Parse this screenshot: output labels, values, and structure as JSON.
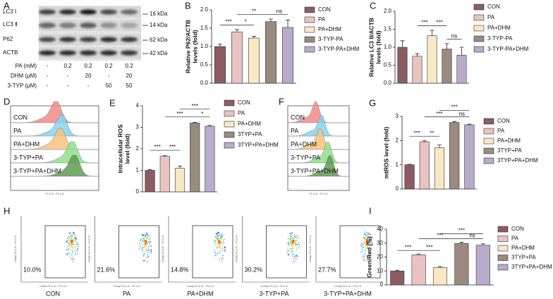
{
  "panel_letters": [
    "A",
    "B",
    "C",
    "D",
    "E",
    "F",
    "G",
    "H",
    "I"
  ],
  "blot": {
    "rows": [
      "LC3 Ⅰ",
      "LC3 Ⅱ",
      "P62",
      "ACTB"
    ],
    "sizes": [
      "16 kDa",
      "14 kDa",
      "62 kDa",
      "42 kDa"
    ],
    "treatments": [
      {
        "name": "PA (mM)",
        "cells": [
          "-",
          "0.2",
          "0.2",
          "0.2",
          "0.2"
        ]
      },
      {
        "name": "DHM (μM)",
        "cells": [
          "-",
          "-",
          "20",
          "-",
          "20"
        ]
      },
      {
        "name": "3-TYP (μM)",
        "cells": [
          "-",
          "-",
          "-",
          "50",
          "50"
        ]
      }
    ]
  },
  "flow_histograms": [
    {
      "labels": [
        "CON",
        "PA",
        "PA+DHM",
        "3-TYP+PA",
        "3-TYP+PA+DHM"
      ],
      "colors": [
        "#f28b8b",
        "#86d4ee",
        "#f6c27e",
        "#90e08c",
        "#5f9a52"
      ],
      "x_axis_label": "FL1-A :: FL1-A"
    },
    {
      "labels": [
        "CON",
        "PA",
        "PA+DHM",
        "3-TYP+PA",
        "3-TYP+PA+DHM"
      ],
      "colors": [
        "#f28b8b",
        "#86d4ee",
        "#f6c27e",
        "#90e08c",
        "#5f9a52"
      ],
      "x_axis_label": "FL1-A :: FL1-A"
    }
  ],
  "flow_scatter": {
    "x_axis_label": "Comp-FL1-A :: FL1-A",
    "y_axis_label": "Comp-FL2-A :: FL2-A",
    "plots": [
      {
        "label": "CON",
        "percent": "10.0%"
      },
      {
        "label": "PA",
        "percent": "21.6%"
      },
      {
        "label": "PA+DHM",
        "percent": "14.8%"
      },
      {
        "label": "3-TYP+PA",
        "percent": "30.2%"
      },
      {
        "label": "3-TYP+PA+DHM",
        "percent": "27.7%"
      }
    ]
  },
  "chart_data": [
    {
      "type": "bar",
      "ylabel": [
        "Relative P62/ACTB",
        "levels (fold)"
      ],
      "ylim": [
        0,
        2
      ],
      "yticks": [
        {
          "value": 0,
          "label": "0.0"
        },
        {
          "value": 0.5,
          "label": "0.5"
        },
        {
          "value": 1,
          "label": "1.0"
        },
        {
          "value": 1.5,
          "label": "1.5"
        },
        {
          "value": 2,
          "label": "2.0"
        }
      ],
      "series": [
        {
          "name": "CON",
          "color": "#8b5c60",
          "values": [
            1.0
          ],
          "errors": [
            0.07
          ]
        },
        {
          "name": "PA",
          "color": "#e8c3bf",
          "values": [
            1.4
          ],
          "errors": [
            0.06
          ]
        },
        {
          "name": "PA+DHM",
          "color": "#f8e8c4",
          "values": [
            1.23
          ],
          "errors": [
            0.05
          ]
        },
        {
          "name": "3-TYP-PA",
          "color": "#9a8a80",
          "values": [
            1.68
          ],
          "errors": [
            0.07
          ]
        },
        {
          "name": "3-TYP-PA+DHM",
          "color": "#b8abcb",
          "values": [
            1.52
          ],
          "errors": [
            0.2
          ]
        }
      ],
      "annotations": [
        {
          "label": "***",
          "bars": [
            0,
            1
          ]
        },
        {
          "label": "*",
          "bars": [
            1,
            2
          ]
        },
        {
          "label": "**",
          "bars": [
            1,
            3
          ]
        },
        {
          "label": "ns",
          "bars": [
            3,
            4
          ]
        }
      ]
    },
    {
      "type": "bar",
      "ylabel": [
        "Relative LC3 II/ACTB",
        "levels (fold)"
      ],
      "ylim": [
        0,
        2
      ],
      "yticks": [
        {
          "value": 0,
          "label": "0.0"
        },
        {
          "value": 0.5,
          "label": "0.5"
        },
        {
          "value": 1,
          "label": "1.0"
        },
        {
          "value": 1.5,
          "label": "1.5"
        },
        {
          "value": 2,
          "label": "2.0"
        }
      ],
      "series": [
        {
          "name": "CON",
          "color": "#8b5c60",
          "values": [
            1.0
          ],
          "errors": [
            0.18
          ]
        },
        {
          "name": "PA",
          "color": "#e8c3bf",
          "values": [
            0.75
          ],
          "errors": [
            0.07
          ]
        },
        {
          "name": "PA+DHM",
          "color": "#f8e8c4",
          "values": [
            1.32
          ],
          "errors": [
            0.15
          ]
        },
        {
          "name": "3-TYP-PA",
          "color": "#9a8a80",
          "values": [
            0.95
          ],
          "errors": [
            0.15
          ]
        },
        {
          "name": "3-TYP-PA+DHM",
          "color": "#b8abcb",
          "values": [
            0.78
          ],
          "errors": [
            0.22
          ]
        }
      ],
      "annotations": [
        {
          "label": "***",
          "bars": [
            1,
            2
          ]
        },
        {
          "label": "***",
          "bars": [
            2,
            3
          ]
        },
        {
          "label": "ns",
          "bars": [
            3,
            4
          ]
        }
      ]
    },
    {
      "type": "bar",
      "ylabel": [
        "Intracellular ROS",
        "level (fold)"
      ],
      "ylim": [
        0,
        4
      ],
      "yticks": [
        0,
        1,
        2,
        3,
        4
      ],
      "series": [
        {
          "name": "CON",
          "color": "#8b5c60",
          "values": [
            1.0
          ],
          "errors": [
            0.04
          ]
        },
        {
          "name": "PA",
          "color": "#e8c3bf",
          "values": [
            1.65
          ],
          "errors": [
            0.03
          ]
        },
        {
          "name": "PA+DHM",
          "color": "#f8e8c4",
          "values": [
            1.1
          ],
          "errors": [
            0.1
          ]
        },
        {
          "name": "3TYP+PA",
          "color": "#9a8a80",
          "values": [
            3.2
          ],
          "errors": [
            0.03
          ]
        },
        {
          "name": "3TYP+PA+DHM",
          "color": "#b8abcb",
          "values": [
            3.05
          ],
          "errors": [
            0.04
          ]
        }
      ],
      "annotations": [
        {
          "label": "***",
          "bars": [
            0,
            1
          ]
        },
        {
          "label": "***",
          "bars": [
            1,
            2
          ]
        },
        {
          "label": "***",
          "bars": [
            1,
            3
          ]
        },
        {
          "label": "*",
          "bars": [
            3,
            4
          ]
        },
        {
          "label": "***",
          "bars": [
            2,
            4
          ]
        }
      ]
    },
    {
      "type": "bar",
      "ylabel": [
        "mtROS level (fold)"
      ],
      "ylim": [
        0,
        3
      ],
      "yticks": [
        0,
        1,
        2,
        3
      ],
      "series": [
        {
          "name": "CON",
          "color": "#8b5c60",
          "values": [
            1.0
          ],
          "errors": [
            0.02
          ]
        },
        {
          "name": "PA",
          "color": "#e8c3bf",
          "values": [
            1.95
          ],
          "errors": [
            0.04
          ]
        },
        {
          "name": "PA+DHM",
          "color": "#f8e8c4",
          "values": [
            1.7
          ],
          "errors": [
            0.12
          ]
        },
        {
          "name": "3TYP+PA",
          "color": "#9a8a80",
          "values": [
            2.75
          ],
          "errors": [
            0.04
          ]
        },
        {
          "name": "3TYP+PA+DHM",
          "color": "#b8abcb",
          "values": [
            2.65
          ],
          "errors": [
            0.03
          ]
        }
      ],
      "annotations": [
        {
          "label": "***",
          "bars": [
            0,
            1
          ]
        },
        {
          "label": "**",
          "bars": [
            1,
            2
          ]
        },
        {
          "label": "***",
          "bars": [
            1,
            3
          ]
        },
        {
          "label": "ns",
          "bars": [
            3,
            4
          ]
        },
        {
          "label": "***",
          "bars": [
            2,
            4
          ]
        }
      ]
    },
    {
      "type": "bar",
      "ylabel": [
        "Green/Red (%)"
      ],
      "ylim": [
        0,
        40
      ],
      "yticks": [
        0,
        10,
        20,
        30,
        40
      ],
      "series": [
        {
          "name": "CON",
          "color": "#8b5c60",
          "values": [
            10.0
          ],
          "errors": [
            0.5
          ]
        },
        {
          "name": "PA",
          "color": "#e8c3bf",
          "values": [
            21.6
          ],
          "errors": [
            0.6
          ]
        },
        {
          "name": "PA+DHM",
          "color": "#f8e8c4",
          "values": [
            12.4
          ],
          "errors": [
            0.8
          ]
        },
        {
          "name": "3TYP+PA",
          "color": "#9a8a80",
          "values": [
            29.8
          ],
          "errors": [
            0.8
          ]
        },
        {
          "name": "3TYP+PA+DHM",
          "color": "#b8abcb",
          "values": [
            28.5
          ],
          "errors": [
            1.0
          ]
        }
      ],
      "annotations": [
        {
          "label": "***",
          "bars": [
            0,
            1
          ]
        },
        {
          "label": "***",
          "bars": [
            1,
            2
          ]
        },
        {
          "label": "***",
          "bars": [
            1,
            3
          ]
        },
        {
          "label": "ns",
          "bars": [
            3,
            4
          ]
        },
        {
          "label": "***",
          "bars": [
            2,
            4
          ]
        }
      ]
    }
  ]
}
